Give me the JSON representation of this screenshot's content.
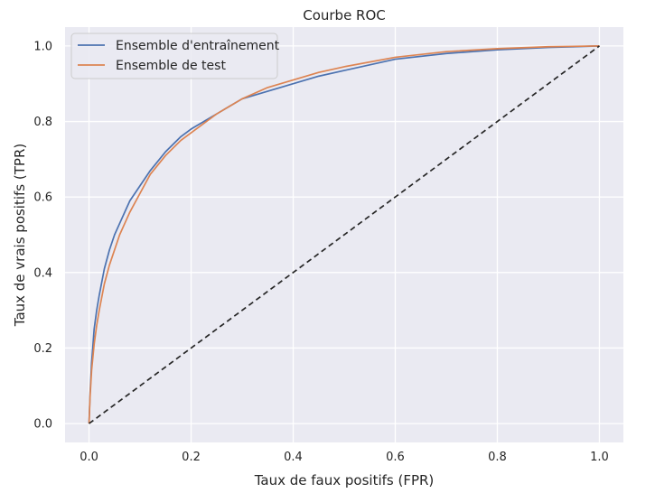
{
  "chart_data": {
    "type": "line",
    "title": "Courbe ROC",
    "xlabel": "Taux de faux positifs (FPR)",
    "ylabel": "Taux de vrais positifs (TPR)",
    "xlim": [
      -0.047,
      1.047
    ],
    "ylim": [
      -0.05,
      1.05
    ],
    "xticks": [
      0.0,
      0.2,
      0.4,
      0.6,
      0.8,
      1.0
    ],
    "yticks": [
      0.0,
      0.2,
      0.4,
      0.6,
      0.8,
      1.0
    ],
    "xtick_labels": [
      "0.0",
      "0.2",
      "0.4",
      "0.6",
      "0.8",
      "1.0"
    ],
    "ytick_labels": [
      "0.0",
      "0.2",
      "0.4",
      "0.6",
      "0.8",
      "1.0"
    ],
    "grid": true,
    "legend_position": "top-left",
    "background": "#eaeaf2",
    "series": [
      {
        "name": "Ensemble d'entraînement",
        "color": "#4c72b0",
        "x": [
          0,
          0.002,
          0.005,
          0.01,
          0.015,
          0.02,
          0.03,
          0.04,
          0.05,
          0.06,
          0.07,
          0.08,
          0.1,
          0.12,
          0.15,
          0.18,
          0.2,
          0.25,
          0.3,
          0.35,
          0.4,
          0.45,
          0.5,
          0.6,
          0.7,
          0.8,
          0.9,
          1.0
        ],
        "y": [
          0,
          0.08,
          0.16,
          0.25,
          0.3,
          0.34,
          0.41,
          0.46,
          0.5,
          0.53,
          0.56,
          0.59,
          0.63,
          0.67,
          0.72,
          0.76,
          0.78,
          0.82,
          0.86,
          0.88,
          0.9,
          0.92,
          0.935,
          0.965,
          0.98,
          0.99,
          0.996,
          1.0
        ]
      },
      {
        "name": "Ensemble de test",
        "color": "#dd8452",
        "x": [
          0,
          0.002,
          0.005,
          0.01,
          0.015,
          0.02,
          0.03,
          0.04,
          0.05,
          0.06,
          0.07,
          0.08,
          0.1,
          0.12,
          0.15,
          0.18,
          0.2,
          0.25,
          0.3,
          0.35,
          0.4,
          0.45,
          0.5,
          0.6,
          0.7,
          0.8,
          0.9,
          1.0
        ],
        "y": [
          0,
          0.07,
          0.14,
          0.21,
          0.26,
          0.3,
          0.37,
          0.42,
          0.46,
          0.5,
          0.53,
          0.56,
          0.61,
          0.66,
          0.71,
          0.75,
          0.77,
          0.82,
          0.86,
          0.89,
          0.91,
          0.93,
          0.945,
          0.97,
          0.985,
          0.993,
          0.998,
          1.0
        ]
      },
      {
        "name": "",
        "color": "#262626",
        "style": "dashed",
        "x": [
          0,
          1
        ],
        "y": [
          0,
          1
        ]
      }
    ]
  }
}
